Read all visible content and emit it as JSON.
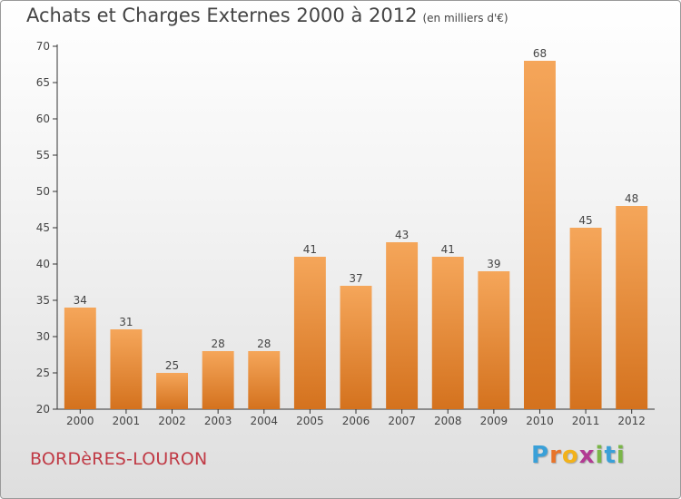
{
  "title": "Achats et Charges Externes 2000 à 2012",
  "subtitle": "(en milliers d'€)",
  "commune": "BORDèRES-LOURON",
  "logo": {
    "text": "Proxiti",
    "letter_colors": [
      "#3aa0d8",
      "#e8742a",
      "#f2b21b",
      "#b23a93",
      "#7ab648",
      "#3aa0d8",
      "#7ab648"
    ]
  },
  "colors": {
    "bar_top": "#f5a65a",
    "bar_bottom": "#d4721e",
    "text": "#444444"
  },
  "chart_data": {
    "type": "bar",
    "categories": [
      "2000",
      "2001",
      "2002",
      "2003",
      "2004",
      "2005",
      "2006",
      "2007",
      "2008",
      "2009",
      "2010",
      "2011",
      "2012"
    ],
    "values": [
      34,
      31,
      25,
      28,
      28,
      41,
      37,
      43,
      41,
      39,
      68,
      45,
      48
    ],
    "ylim": [
      20,
      70
    ],
    "yticks": [
      20,
      25,
      30,
      35,
      40,
      45,
      50,
      55,
      60,
      65,
      70
    ],
    "grid": false,
    "data_labels": true
  }
}
